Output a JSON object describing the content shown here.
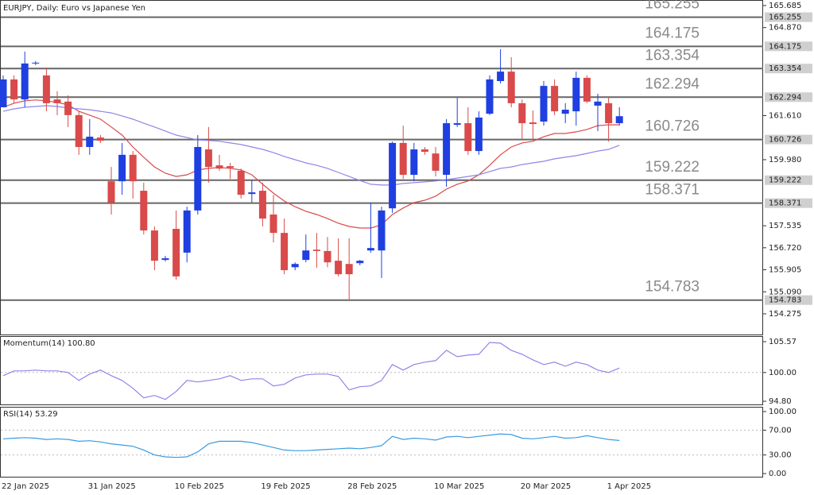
{
  "chart_data": [
    {
      "type": "candlestick",
      "title": "EURJPY, Daily:  Euro vs Japanese Yen",
      "categories": [
        "22 Jan 2025",
        null,
        null,
        null,
        null,
        null,
        null,
        null,
        "31 Jan 2025",
        null,
        null,
        null,
        null,
        null,
        null,
        null,
        "10 Feb 2025",
        null,
        null,
        null,
        null,
        null,
        null,
        null,
        "19 Feb 2025",
        null,
        null,
        null,
        null,
        null,
        null,
        null,
        "28 Feb 2025",
        null,
        null,
        null,
        null,
        null,
        null,
        null,
        "10 Mar 2025",
        null,
        null,
        null,
        null,
        null,
        null,
        null,
        "20 Mar 2025",
        null,
        null,
        null,
        null,
        null,
        null,
        null,
        "1 Apr 2025",
        null
      ],
      "open": [
        161.92,
        162.95,
        162.21,
        163.54,
        163.1,
        162.21,
        162.13,
        161.63,
        160.45,
        160.8,
        159.18,
        159.18,
        160.16,
        158.83,
        157.36,
        156.27,
        157.42,
        156.54,
        158.1,
        160.36,
        159.77,
        159.74,
        159.57,
        158.71,
        158.83,
        157.95,
        157.27,
        156.0,
        156.27,
        156.65,
        156.6,
        156.24,
        156.12,
        156.15,
        156.62,
        156.62,
        158.18,
        160.6,
        159.42,
        160.36,
        160.21,
        159.42,
        161.27,
        161.33,
        160.3,
        161.68,
        162.89,
        163.24,
        162.07,
        161.36,
        161.39,
        162.71,
        161.68,
        161.77,
        163.01,
        161.98,
        162.07,
        161.33
      ],
      "high": [
        163.1,
        163.1,
        163.98,
        163.63,
        163.39,
        162.51,
        162.36,
        161.77,
        161.48,
        160.89,
        159.71,
        160.6,
        160.3,
        159.13,
        157.51,
        156.42,
        158.1,
        158.24,
        160.89,
        161.19,
        160.16,
        159.86,
        159.65,
        159.21,
        159.13,
        158.68,
        157.8,
        156.18,
        157.21,
        157.27,
        157.12,
        157.07,
        157.07,
        156.27,
        158.39,
        158.24,
        160.65,
        161.24,
        160.6,
        160.45,
        160.45,
        161.48,
        162.27,
        161.92,
        161.77,
        163.1,
        164.07,
        163.77,
        162.21,
        161.8,
        162.89,
        162.95,
        162.07,
        163.24,
        163.1,
        162.42,
        162.3,
        161.92
      ],
      "low": [
        161.92,
        162.07,
        161.92,
        163.48,
        161.77,
        161.63,
        161.19,
        160.16,
        160.16,
        160.6,
        157.95,
        158.68,
        158.54,
        157.21,
        155.89,
        156.21,
        155.54,
        156.18,
        157.95,
        159.13,
        159.57,
        159.27,
        158.54,
        158.39,
        157.51,
        156.92,
        155.74,
        155.89,
        156.18,
        155.98,
        156.0,
        155.66,
        154.8,
        156.07,
        156.54,
        155.6,
        158.01,
        159.27,
        159.18,
        160.16,
        159.36,
        158.98,
        161.19,
        160.16,
        160.16,
        161.63,
        162.8,
        161.92,
        160.74,
        160.74,
        161.24,
        161.63,
        161.33,
        161.24,
        162.07,
        161.04,
        160.65,
        161.24
      ],
      "close": [
        162.95,
        162.21,
        163.54,
        163.57,
        162.07,
        162.07,
        161.63,
        160.45,
        160.83,
        160.68,
        158.39,
        160.16,
        159.18,
        157.36,
        156.24,
        156.33,
        155.66,
        158.1,
        160.45,
        159.71,
        159.65,
        159.68,
        158.68,
        158.77,
        157.8,
        157.27,
        155.89,
        156.12,
        156.62,
        156.6,
        156.18,
        155.74,
        155.74,
        156.24,
        156.71,
        158.1,
        160.6,
        159.42,
        160.36,
        160.27,
        159.57,
        161.33,
        161.33,
        160.3,
        161.54,
        162.95,
        163.24,
        162.07,
        161.33,
        161.3,
        162.71,
        161.77,
        161.83,
        163.01,
        162.13,
        162.13,
        161.33,
        161.59
      ],
      "up_color": "#1f3fe0",
      "down_color": "#d94a4a",
      "overlays": [
        {
          "color": "#d94a4a",
          "values": [
            161.92,
            162.07,
            162.16,
            162.19,
            162.16,
            162.1,
            162.01,
            161.77,
            161.63,
            161.48,
            161.19,
            160.89,
            160.45,
            160.07,
            159.71,
            159.48,
            159.36,
            159.42,
            159.6,
            159.66,
            159.69,
            159.66,
            159.6,
            159.42,
            159.07,
            158.74,
            158.45,
            158.24,
            158.07,
            157.95,
            157.8,
            157.63,
            157.51,
            157.45,
            157.45,
            157.57,
            157.95,
            158.19,
            158.39,
            158.48,
            158.63,
            158.89,
            159.07,
            159.19,
            159.42,
            159.77,
            160.16,
            160.45,
            160.6,
            160.66,
            160.83,
            160.95,
            160.95,
            161.01,
            161.1,
            161.24,
            161.27,
            161.27
          ]
        },
        {
          "color": "#8e86e8",
          "values": [
            161.77,
            161.86,
            161.92,
            161.95,
            161.98,
            161.95,
            161.89,
            161.86,
            161.83,
            161.77,
            161.71,
            161.6,
            161.48,
            161.33,
            161.19,
            161.04,
            160.89,
            160.8,
            160.71,
            160.69,
            160.66,
            160.6,
            160.54,
            160.45,
            160.36,
            160.24,
            160.1,
            159.98,
            159.86,
            159.77,
            159.66,
            159.51,
            159.36,
            159.21,
            159.07,
            159.04,
            159.04,
            159.1,
            159.13,
            159.16,
            159.19,
            159.24,
            159.3,
            159.36,
            159.42,
            159.54,
            159.66,
            159.71,
            159.8,
            159.86,
            159.92,
            160.01,
            160.07,
            160.13,
            160.21,
            160.3,
            160.36,
            160.51
          ]
        }
      ],
      "levels": [
        165.255,
        164.175,
        163.354,
        162.294,
        160.726,
        159.222,
        158.371,
        154.783
      ],
      "ylim": [
        153.48,
        165.89
      ],
      "yticks": [
        165.685,
        {
          "value": 164.87,
          "label": "164.870"
        },
        {
          "value": 161.61,
          "label": "161.610"
        },
        {
          "value": 159.98,
          "label": "159.980"
        },
        157.535,
        {
          "value": 156.72,
          "label": "156.720"
        },
        155.905,
        {
          "value": 155.09,
          "label": "155.090"
        },
        154.275
      ]
    },
    {
      "type": "line",
      "label": "Momentum(14) 100.80",
      "color": "#8e86e8",
      "values": [
        99.43,
        100.29,
        100.29,
        100.43,
        100.29,
        100.29,
        100.0,
        98.57,
        99.71,
        100.43,
        99.43,
        98.57,
        97.14,
        95.43,
        95.86,
        95.14,
        96.57,
        98.57,
        98.29,
        98.57,
        98.86,
        99.43,
        98.57,
        98.86,
        98.86,
        97.57,
        97.86,
        99.0,
        99.57,
        99.71,
        99.71,
        99.29,
        96.86,
        97.43,
        97.57,
        98.57,
        101.43,
        100.43,
        101.43,
        101.86,
        102.14,
        104.0,
        102.86,
        103.14,
        103.29,
        105.43,
        105.29,
        104.0,
        103.29,
        102.29,
        101.43,
        101.86,
        101.14,
        101.86,
        101.43,
        100.43,
        100.0,
        100.8
      ],
      "levels": [
        100
      ],
      "ylim": [
        94.09,
        106.43
      ],
      "yticks": [
        105.57,
        {
          "value": 100,
          "label": "100.00"
        },
        {
          "value": 94.8,
          "label": "94.80"
        }
      ]
    },
    {
      "type": "line",
      "label": "RSI(14) 53.29",
      "color": "#3a9be0",
      "values": [
        56,
        57,
        58,
        57,
        55,
        56,
        55,
        52,
        53,
        51,
        48,
        46,
        44,
        38,
        30,
        27,
        26,
        27,
        35,
        48,
        52,
        52,
        52,
        50,
        46,
        42,
        38,
        37,
        37,
        38,
        39,
        40,
        41,
        40,
        42,
        45,
        60,
        55,
        57,
        56,
        54,
        59,
        60,
        58,
        60,
        62,
        64,
        63,
        57,
        56,
        58,
        60,
        57,
        58,
        61,
        58,
        55,
        53.29
      ],
      "levels": [
        70,
        30
      ],
      "ylim": [
        -5.1,
        106.4
      ],
      "yticks": [
        {
          "value": 100,
          "label": "100.00"
        },
        {
          "value": 70,
          "label": "70.00"
        },
        {
          "value": 30,
          "label": "30.00"
        },
        {
          "value": 0,
          "label": "0.00"
        }
      ]
    }
  ]
}
